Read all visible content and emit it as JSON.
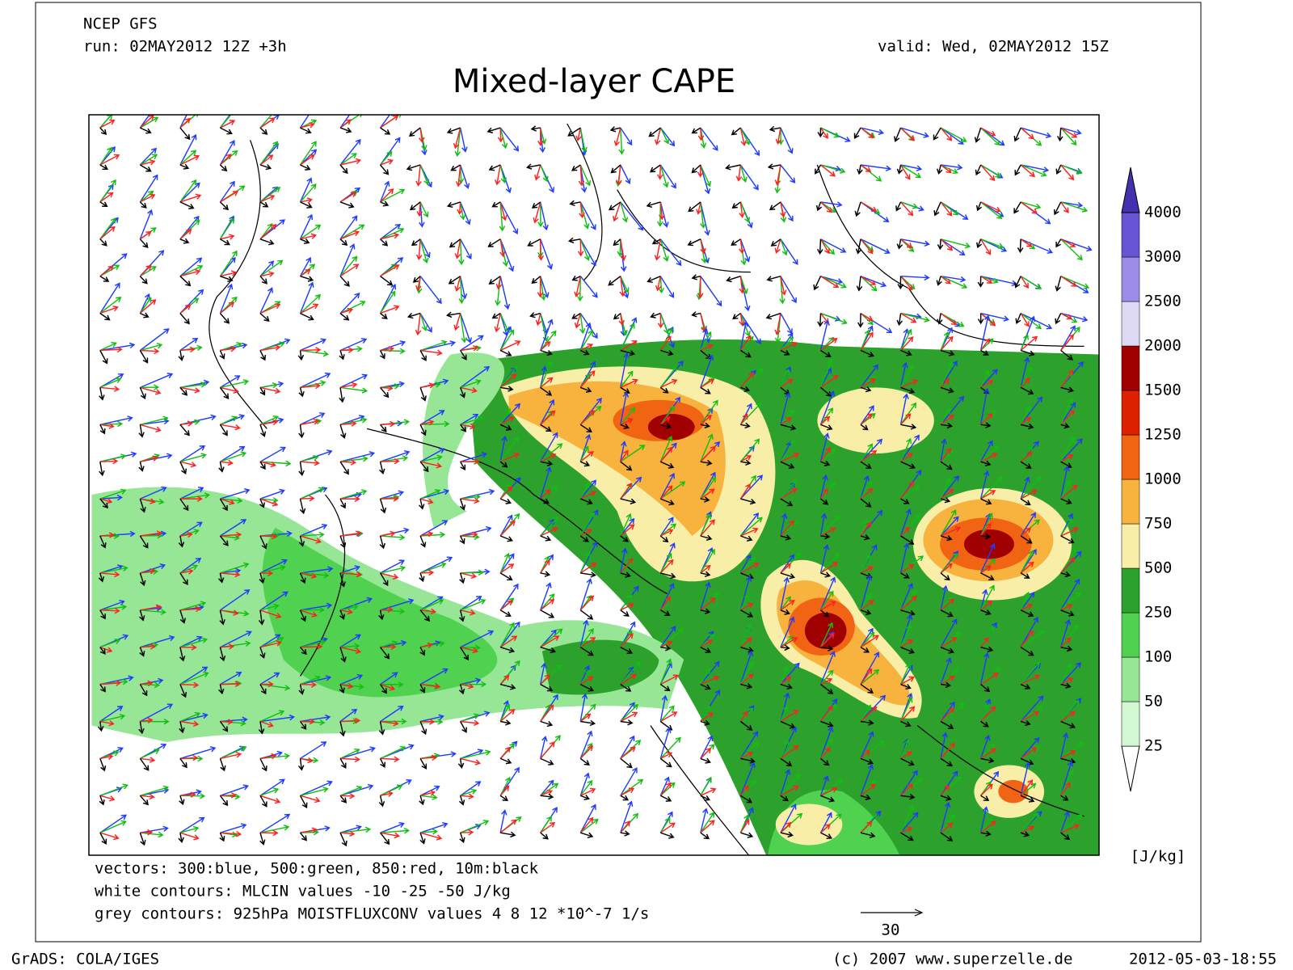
{
  "header": {
    "model": "NCEP GFS",
    "run": "run: 02MAY2012 12Z +3h",
    "valid": "valid: Wed, 02MAY2012 15Z",
    "title": "Mixed-layer CAPE"
  },
  "colorbar": {
    "levels": [
      25,
      50,
      100,
      250,
      500,
      750,
      1000,
      1250,
      1500,
      2000,
      2500,
      3000,
      4000
    ],
    "colors": [
      "#ffffff",
      "#d2f8d2",
      "#96e696",
      "#50d250",
      "#2ca22c",
      "#f8eea8",
      "#f8b23e",
      "#f06414",
      "#dc2000",
      "#a00000",
      "#dedaf6",
      "#9c8ce8",
      "#6654d2",
      "#4232b0"
    ],
    "unit": "[J/kg]"
  },
  "legend": {
    "vectors": "vectors: 300:blue, 500:green, 850:red, 10m:black",
    "white_contours": "white contours: MLCIN values -10 -25 -50 J/kg",
    "grey_contours": "grey contours: 925hPa MOISTFLUXCONV values 4 8 12 *10^-7 1/s",
    "scale": "30"
  },
  "footer": {
    "left": "GrADS: COLA/IGES",
    "center": "(c) 2007 www.superzelle.de",
    "right": "2012-05-03-18:55"
  }
}
